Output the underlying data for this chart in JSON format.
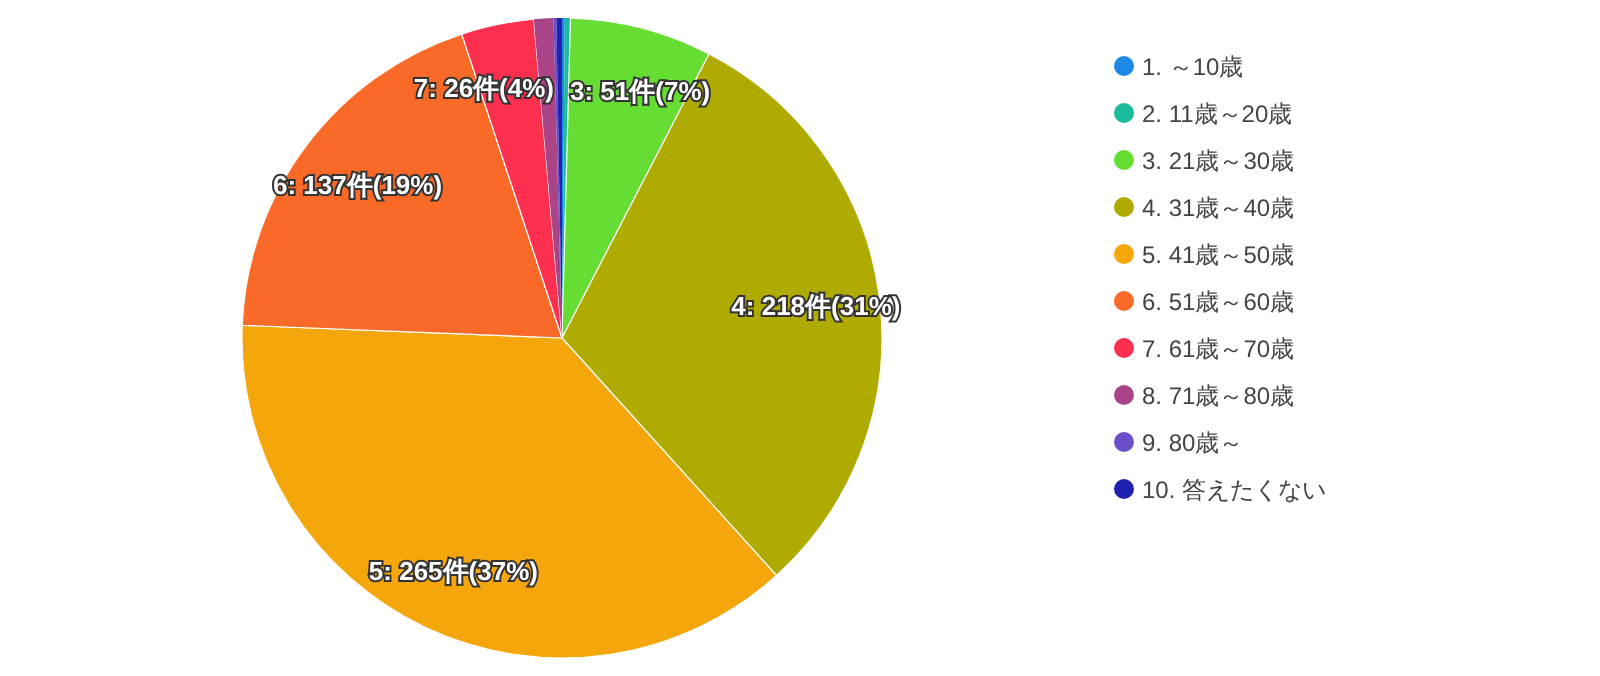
{
  "chart_data": {
    "type": "pie",
    "categories": [
      "1. ～10歳",
      "2. 11歳～20歳",
      "3. 21歳～30歳",
      "4. 31歳～40歳",
      "5. 41歳～50歳",
      "6. 51歳～60歳",
      "7. 61歳～70歳",
      "8. 71歳～80歳",
      "9. 80歳～",
      "10. 答えたくない"
    ],
    "values": [
      1,
      2,
      51,
      218,
      265,
      137,
      26,
      7,
      1,
      2
    ],
    "colors": [
      "#1e88e5",
      "#1abc9c",
      "#66dd33",
      "#b0ab00",
      "#f4a60a",
      "#f96a28",
      "#fd2f4f",
      "#aa4488",
      "#6a4fc8",
      "#1f22b0"
    ],
    "value_labels": [
      null,
      null,
      "3: 51件(7%)",
      "4: 218件(31%)",
      "5: 265件(37%)",
      "6: 137件(19%)",
      "7: 26件(4%)",
      null,
      null,
      null
    ],
    "legend": "right"
  }
}
